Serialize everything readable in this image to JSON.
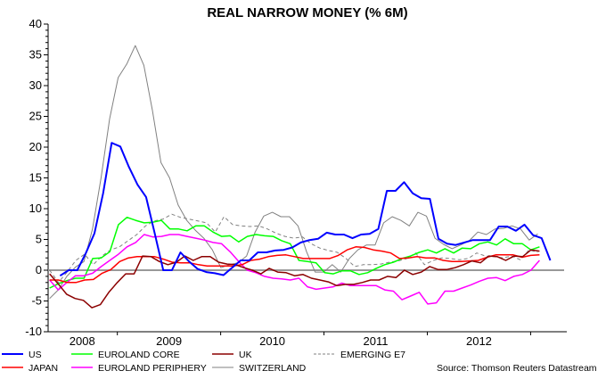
{
  "chart_data": {
    "type": "line",
    "title": "REAL NARROW MONEY (% 6M)",
    "xlabel": "",
    "ylabel": "",
    "xlim": [
      2008.33,
      2013.35
    ],
    "ylim": [
      -10,
      40
    ],
    "yticks": [
      -10,
      -5,
      0,
      5,
      10,
      15,
      20,
      25,
      30,
      35,
      40
    ],
    "yticks_labels": [
      "-10",
      "-5",
      "0",
      "5",
      "10",
      "15",
      "20",
      "25",
      "30",
      "35",
      "40"
    ],
    "xtick_boundaries": [
      2009,
      2010,
      2011,
      2012,
      2013
    ],
    "xlabels": [
      {
        "label": "2008",
        "center": 2008.66
      },
      {
        "label": "2009",
        "center": 2009.5
      },
      {
        "label": "2010",
        "center": 2010.5
      },
      {
        "label": "2011",
        "center": 2011.5
      },
      {
        "label": "2012",
        "center": 2012.5
      }
    ],
    "zero_line": true,
    "grid": false,
    "legend_position": "bottom",
    "source": "Source: Thomson Reuters Datastream",
    "series": [
      {
        "name": "US",
        "color": "#0000ff",
        "width": 2,
        "dash": "",
        "x_start": 2008.446,
        "x_end": 2013.19,
        "values": [
          -0.9,
          0,
          0,
          2.8,
          6,
          12.5,
          20.7,
          20.1,
          16.8,
          13.9,
          11.9,
          6,
          0,
          0,
          2.9,
          1.4,
          0.2,
          -0.3,
          -0.5,
          -0.8,
          0.4,
          1.6,
          1.6,
          2.9,
          2.9,
          3.2,
          3.3,
          3.7,
          4.5,
          4.9,
          5.1,
          6.1,
          5.8,
          5.8,
          5.2,
          5.8,
          5.9,
          6.7,
          12.9,
          12.9,
          14.3,
          12.5,
          11.7,
          11.6,
          5.1,
          4.3,
          4.1,
          4.5,
          4.9,
          4.9,
          4.9,
          7.1,
          7.1,
          6.4,
          7.4,
          5.7,
          5.2,
          1.6
        ]
      },
      {
        "name": "JAPAN",
        "color": "#ff0000",
        "width": 1.5,
        "dash": "",
        "x_start": 2008.345,
        "x_end": 2013.086,
        "values": [
          -1.6,
          -1.6,
          -2,
          -2,
          -1.6,
          -1.5,
          -0.5,
          0.1,
          1.4,
          2,
          2.2,
          2.2,
          2.2,
          1.8,
          1.3,
          1.2,
          1.2,
          0.9,
          0.7,
          0.7,
          0.7,
          0.7,
          0.9,
          1.6,
          1.8,
          2.2,
          2.4,
          2.5,
          2.2,
          1.9,
          1.9,
          1.9,
          1.9,
          2.4,
          3.3,
          3.8,
          3.7,
          3.3,
          3.1,
          2.8,
          1.9,
          2,
          2.2,
          2,
          2,
          1.6,
          1.4,
          1.4,
          1.5,
          1.6,
          2.1,
          2.5,
          2.5,
          2.5,
          2.1,
          2.4,
          2.5
        ]
      },
      {
        "name": "EUROLAND CORE",
        "color": "#00ff00",
        "width": 1.5,
        "dash": "",
        "x_start": 2008.345,
        "x_end": 2013.086,
        "values": [
          -2.9,
          -2.2,
          -1.7,
          -1.3,
          -1.3,
          1.9,
          2,
          3,
          7.4,
          8.6,
          8.1,
          7.7,
          7.8,
          8.1,
          6.7,
          6.7,
          6.4,
          7.2,
          7.2,
          6.2,
          5.5,
          5.6,
          4.6,
          5.5,
          5.8,
          5.6,
          5.5,
          4.8,
          4.3,
          1.6,
          1.4,
          1.2,
          -0.4,
          -0.6,
          -0.1,
          -0.1,
          -0.7,
          -0.4,
          0.3,
          0.9,
          1.3,
          1.9,
          2.3,
          2.9,
          3.3,
          2.8,
          3.5,
          2.8,
          3.6,
          3.5,
          4.3,
          4.6,
          4.1,
          5.1,
          4.3,
          4.3,
          3.3,
          3.8
        ]
      },
      {
        "name": "EUROLAND PERIPHERY",
        "color": "#ff00ff",
        "width": 1.5,
        "dash": "",
        "x_start": 2008.345,
        "x_end": 2013.086,
        "values": [
          -1.6,
          -3.2,
          -2,
          -0.9,
          -0.9,
          -0.5,
          0.6,
          1.6,
          2.6,
          3.8,
          4.5,
          5.8,
          5.4,
          5.5,
          5.8,
          5.8,
          5.5,
          5.2,
          4.9,
          4.5,
          4.3,
          3,
          1.4,
          0,
          -0.4,
          -1,
          -1.3,
          -1.4,
          -1.6,
          -1.3,
          -2.7,
          -3.1,
          -2.9,
          -2.7,
          -2.1,
          -2.5,
          -2.5,
          -2.5,
          -2.5,
          -3.2,
          -3.4,
          -4.8,
          -4.2,
          -3.6,
          -5.5,
          -5.3,
          -3.4,
          -3.4,
          -2.9,
          -2.4,
          -1.8,
          -1.3,
          -1.2,
          -1.7,
          -1,
          -0.7,
          0,
          1.6
        ]
      },
      {
        "name": "UK",
        "color": "#8b0000",
        "width": 1.5,
        "dash": "",
        "x_start": 2008.345,
        "x_end": 2013.086,
        "values": [
          -0.6,
          -2.2,
          -3.9,
          -4.6,
          -4.9,
          -6.1,
          -5.6,
          -3.6,
          -2,
          -0.6,
          -0.6,
          2.3,
          2.2,
          1.4,
          0.9,
          1.3,
          2.3,
          1.6,
          2.2,
          2.2,
          1.3,
          1,
          0.9,
          0.4,
          0,
          -0.6,
          0.3,
          -0.3,
          -0.4,
          -0.9,
          -0.7,
          -1.3,
          -1.6,
          -1.9,
          -2.5,
          -2.3,
          -2.3,
          -2,
          -1.6,
          -1.6,
          -1,
          -1.2,
          0,
          -0.7,
          -0.3,
          0.6,
          0.1,
          0.1,
          0.4,
          0.9,
          1.5,
          1.2,
          2.3,
          2.2,
          1.6,
          2.3,
          2.2,
          3.3,
          3.1
        ]
      },
      {
        "name": "SWITZERLAND",
        "color": "#808080",
        "width": 1,
        "dash": "",
        "x_start": 2008.345,
        "x_end": 2013.069,
        "values": [
          -4.6,
          -3.2,
          -1,
          0.5,
          1.4,
          6.7,
          15,
          24.6,
          31.3,
          33.5,
          36.5,
          33.3,
          26,
          17.5,
          15,
          10.6,
          8.1,
          6.5,
          5.2,
          3.3,
          0.4,
          0.9,
          1.2,
          2.3,
          6.2,
          8.8,
          9.4,
          8.7,
          8.7,
          7.2,
          3,
          -0.3,
          -0.3,
          0.9,
          -0.3,
          1.9,
          3.3,
          4.1,
          4.1,
          7.7,
          8.7,
          8.1,
          7.2,
          9.4,
          8.8,
          5.2,
          4.2,
          3.5,
          4.1,
          4.8,
          6.2,
          5.8,
          6.7,
          6.8,
          7.2,
          6.7,
          4.9,
          5.9
        ]
      },
      {
        "name": "EMERGING E7",
        "color": "#808080",
        "width": 1,
        "dash": "4,3",
        "x_start": 2008.345,
        "x_end": 2013.069,
        "values": [
          0,
          -2,
          -0.3,
          1.6,
          2.6,
          0.9,
          2.3,
          3.3,
          3.8,
          4.8,
          5.8,
          7.2,
          8,
          8.3,
          9.1,
          8.6,
          8.3,
          8,
          7.7,
          6.2,
          8.7,
          7.4,
          7.2,
          7.1,
          7.2,
          6.7,
          6,
          5.5,
          5.2,
          5.4,
          4.3,
          3.6,
          3.2,
          2.9,
          1.9,
          0.6,
          0.9,
          0.9,
          1,
          1.3,
          1.5,
          1.9,
          2.8,
          0.9,
          1.6,
          2,
          1.9,
          1.7,
          1.9,
          2.8,
          2.3,
          2.2,
          2,
          2.3,
          1.7,
          3.3,
          2.9
        ]
      }
    ]
  }
}
